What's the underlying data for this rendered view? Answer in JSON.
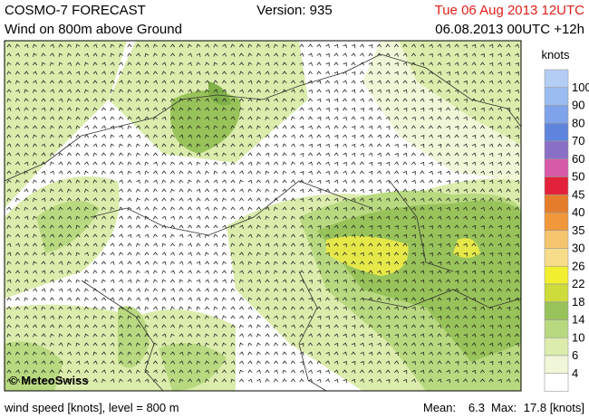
{
  "header": {
    "title": "COSMO-7 FORECAST",
    "subtitle": "Wind on 800m above Ground",
    "version": "Version: 935",
    "valid_time": "Tue 06 Aug 2013 12UTC",
    "run": "06.08.2013 00UTC +12h"
  },
  "legend": {
    "unit": "knots",
    "labels": [
      100,
      90,
      80,
      70,
      60,
      50,
      45,
      40,
      35,
      30,
      26,
      22,
      18,
      14,
      10,
      6,
      4
    ],
    "colors": [
      "#b4cdf5",
      "#9bbcf0",
      "#7ea3ea",
      "#5f84dd",
      "#8a6fc6",
      "#d65aa8",
      "#e3213a",
      "#e57c2c",
      "#f0983a",
      "#f6c66e",
      "#f7dc8a",
      "#f1ef2f",
      "#cddc3a",
      "#98c35a",
      "#b8d980",
      "#dbecac",
      "#f0f7d8",
      "#ffffff"
    ]
  },
  "map": {
    "copyright": "© MeteoSwiss"
  },
  "footer": {
    "description": "wind speed [knots], level = 800 m",
    "mean_label": "Mean:",
    "mean": "6.3",
    "max_label": "Max:",
    "max": "17.8 [knots]"
  }
}
